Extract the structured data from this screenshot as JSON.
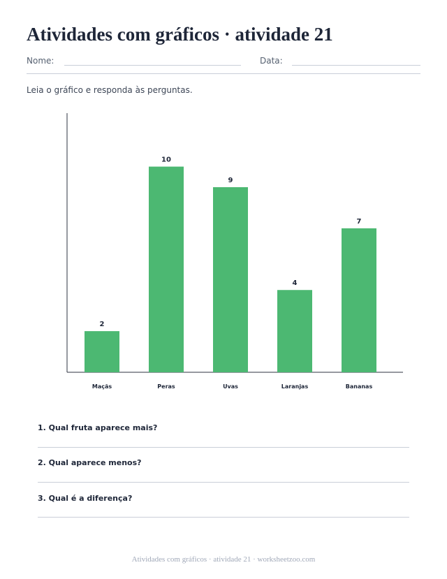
{
  "worksheet": {
    "title": "Atividades com gráficos · atividade 21",
    "name_label": "Nome:",
    "date_label": "Data:",
    "instructions": "Leia o gráfico e responda às perguntas.",
    "questions": [
      "1. Qual fruta aparece mais?",
      "2. Qual aparece menos?",
      "3. Qual é a diferença?"
    ],
    "footer": "Atividades com gráficos · atividade 21 · worksheetzoo.com"
  },
  "colors": {
    "bar": "#4cb872",
    "axis": "#2d3340"
  },
  "chart_data": {
    "type": "bar",
    "categories": [
      "Maçãs",
      "Peras",
      "Uvas",
      "Laranjas",
      "Bananas"
    ],
    "values": [
      2,
      10,
      9,
      4,
      7
    ],
    "ylim": [
      0,
      12.6
    ],
    "grid": false,
    "legend": "none",
    "data_labels": true
  }
}
